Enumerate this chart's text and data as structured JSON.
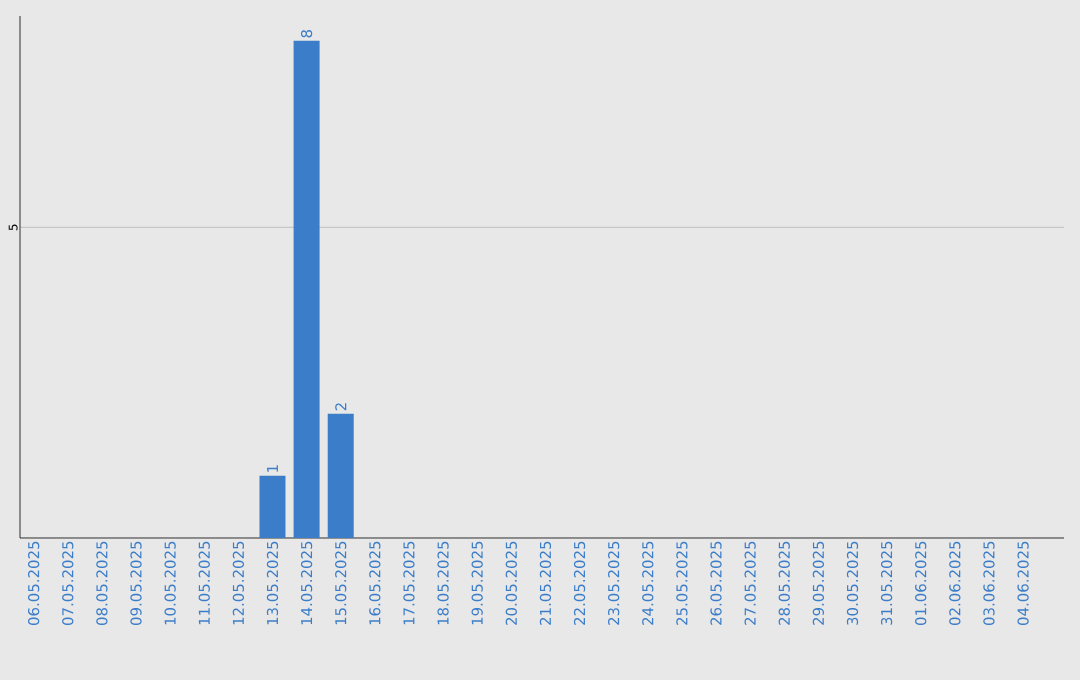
{
  "chart_data": {
    "type": "bar",
    "categories": [
      "06.05.2025",
      "07.05.2025",
      "08.05.2025",
      "09.05.2025",
      "10.05.2025",
      "11.05.2025",
      "12.05.2025",
      "13.05.2025",
      "14.05.2025",
      "15.05.2025",
      "16.05.2025",
      "17.05.2025",
      "18.05.2025",
      "19.05.2025",
      "20.05.2025",
      "21.05.2025",
      "22.05.2025",
      "23.05.2025",
      "24.05.2025",
      "25.05.2025",
      "26.05.2025",
      "27.05.2025",
      "28.05.2025",
      "29.05.2025",
      "30.05.2025",
      "31.05.2025",
      "01.06.2025",
      "02.06.2025",
      "03.06.2025",
      "04.06.2025"
    ],
    "values": [
      0,
      0,
      0,
      0,
      0,
      0,
      0,
      1,
      8,
      2,
      0,
      0,
      0,
      0,
      0,
      0,
      0,
      0,
      0,
      0,
      0,
      0,
      0,
      0,
      0,
      0,
      0,
      0,
      0,
      0
    ],
    "value_labels": [
      null,
      null,
      null,
      null,
      null,
      null,
      null,
      "1",
      "8",
      "2",
      null,
      null,
      null,
      null,
      null,
      null,
      null,
      null,
      null,
      null,
      null,
      null,
      null,
      null,
      null,
      null,
      null,
      null,
      null,
      null
    ],
    "color": "#3b7dc8",
    "ylim": [
      0,
      8.4
    ],
    "yticks": [
      5
    ],
    "grid": "y"
  }
}
